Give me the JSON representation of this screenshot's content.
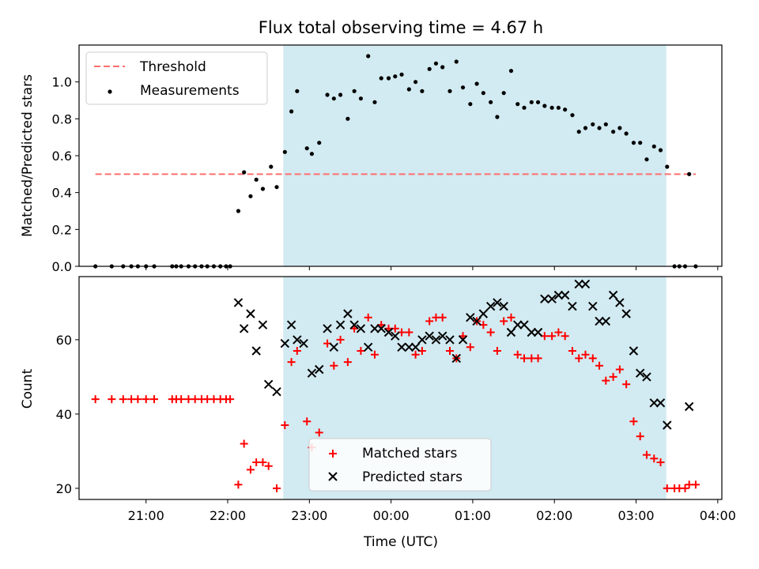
{
  "chart_data": {
    "title": "Flux total observing time = 4.67 h",
    "xlabel": "Time (UTC)",
    "x_unit": "hours (UTC, times after 24:00 are next day)",
    "x_ticks": [
      {
        "v": 21,
        "label": "21:00"
      },
      {
        "v": 22,
        "label": "22:00"
      },
      {
        "v": 23,
        "label": "23:00"
      },
      {
        "v": 24,
        "label": "00:00"
      },
      {
        "v": 25,
        "label": "01:00"
      },
      {
        "v": 26,
        "label": "02:00"
      },
      {
        "v": 27,
        "label": "03:00"
      },
      {
        "v": 28,
        "label": "04:00"
      }
    ],
    "xlim": [
      20.18,
      28.05
    ],
    "observing_window": {
      "start": 22.68,
      "end": 27.37,
      "color": "#add8e6"
    },
    "top": {
      "type": "scatter",
      "ylabel": "Matched/Predicted stars",
      "ylim": [
        0,
        1.2
      ],
      "y_ticks": [
        "0.0",
        "0.2",
        "0.4",
        "0.6",
        "0.8",
        "1.0"
      ],
      "threshold": {
        "name": "Threshold",
        "value": 0.5,
        "x_range": [
          20.38,
          28.05
        ],
        "color": "#ff6f6f"
      },
      "measurements": {
        "name": "Measurements",
        "color": "#000000",
        "points": [
          [
            20.38,
            0
          ],
          [
            20.58,
            0
          ],
          [
            20.72,
            0
          ],
          [
            20.82,
            0
          ],
          [
            20.9,
            0
          ],
          [
            21.0,
            0
          ],
          [
            21.1,
            0
          ],
          [
            21.32,
            0
          ],
          [
            21.37,
            0
          ],
          [
            21.43,
            0
          ],
          [
            21.52,
            0
          ],
          [
            21.6,
            0
          ],
          [
            21.68,
            0
          ],
          [
            21.75,
            0
          ],
          [
            21.83,
            0
          ],
          [
            21.91,
            0
          ],
          [
            21.98,
            0
          ],
          [
            22.03,
            0
          ],
          [
            22.13,
            0.3
          ],
          [
            22.2,
            0.51
          ],
          [
            22.28,
            0.38
          ],
          [
            22.35,
            0.47
          ],
          [
            22.43,
            0.42
          ],
          [
            22.53,
            0.54
          ],
          [
            22.6,
            0.43
          ],
          [
            22.7,
            0.62
          ],
          [
            22.78,
            0.84
          ],
          [
            22.85,
            0.95
          ],
          [
            22.97,
            0.64
          ],
          [
            23.03,
            0.61
          ],
          [
            23.12,
            0.67
          ],
          [
            23.22,
            0.93
          ],
          [
            23.3,
            0.91
          ],
          [
            23.38,
            0.93
          ],
          [
            23.47,
            0.8
          ],
          [
            23.55,
            0.95
          ],
          [
            23.63,
            0.91
          ],
          [
            23.72,
            1.14
          ],
          [
            23.8,
            0.89
          ],
          [
            23.88,
            1.02
          ],
          [
            23.97,
            1.02
          ],
          [
            24.05,
            1.03
          ],
          [
            24.13,
            1.04
          ],
          [
            24.22,
            0.96
          ],
          [
            24.3,
            1.0
          ],
          [
            24.38,
            0.95
          ],
          [
            24.47,
            1.07
          ],
          [
            24.55,
            1.1
          ],
          [
            24.63,
            1.08
          ],
          [
            24.72,
            0.95
          ],
          [
            24.8,
            1.11
          ],
          [
            24.88,
            0.97
          ],
          [
            24.97,
            0.88
          ],
          [
            25.05,
            0.99
          ],
          [
            25.13,
            0.94
          ],
          [
            25.22,
            0.89
          ],
          [
            25.3,
            0.81
          ],
          [
            25.38,
            0.94
          ],
          [
            25.47,
            1.06
          ],
          [
            25.55,
            0.88
          ],
          [
            25.63,
            0.86
          ],
          [
            25.72,
            0.89
          ],
          [
            25.8,
            0.89
          ],
          [
            25.88,
            0.87
          ],
          [
            25.97,
            0.86
          ],
          [
            26.05,
            0.86
          ],
          [
            26.13,
            0.85
          ],
          [
            26.22,
            0.82
          ],
          [
            26.3,
            0.73
          ],
          [
            26.38,
            0.75
          ],
          [
            26.47,
            0.77
          ],
          [
            26.55,
            0.75
          ],
          [
            26.63,
            0.77
          ],
          [
            26.72,
            0.73
          ],
          [
            26.8,
            0.75
          ],
          [
            26.88,
            0.72
          ],
          [
            26.97,
            0.67
          ],
          [
            27.05,
            0.67
          ],
          [
            27.13,
            0.58
          ],
          [
            27.22,
            0.65
          ],
          [
            27.3,
            0.63
          ],
          [
            27.38,
            0.54
          ],
          [
            27.47,
            0
          ],
          [
            27.53,
            0
          ],
          [
            27.6,
            0
          ],
          [
            27.65,
            0.5
          ],
          [
            27.73,
            0
          ]
        ]
      },
      "legend": {
        "position": "top-left"
      }
    },
    "bottom": {
      "type": "scatter",
      "ylabel": "Count",
      "ylim": [
        17,
        77
      ],
      "y_ticks": [
        "20",
        "40",
        "60"
      ],
      "matched": {
        "name": "Matched stars",
        "color": "#ff0000",
        "points": [
          [
            20.38,
            44
          ],
          [
            20.58,
            44
          ],
          [
            20.72,
            44
          ],
          [
            20.82,
            44
          ],
          [
            20.9,
            44
          ],
          [
            21.0,
            44
          ],
          [
            21.1,
            44
          ],
          [
            21.32,
            44
          ],
          [
            21.37,
            44
          ],
          [
            21.43,
            44
          ],
          [
            21.52,
            44
          ],
          [
            21.6,
            44
          ],
          [
            21.68,
            44
          ],
          [
            21.75,
            44
          ],
          [
            21.83,
            44
          ],
          [
            21.91,
            44
          ],
          [
            21.98,
            44
          ],
          [
            22.03,
            44
          ],
          [
            22.13,
            21
          ],
          [
            22.2,
            32
          ],
          [
            22.28,
            25
          ],
          [
            22.35,
            27
          ],
          [
            22.43,
            27
          ],
          [
            22.5,
            26
          ],
          [
            22.6,
            20
          ],
          [
            22.7,
            37
          ],
          [
            22.78,
            54
          ],
          [
            22.85,
            57
          ],
          [
            22.97,
            38
          ],
          [
            23.03,
            31
          ],
          [
            23.12,
            35
          ],
          [
            23.22,
            59
          ],
          [
            23.3,
            53
          ],
          [
            23.38,
            60
          ],
          [
            23.47,
            54
          ],
          [
            23.55,
            63
          ],
          [
            23.63,
            57
          ],
          [
            23.72,
            66
          ],
          [
            23.8,
            56
          ],
          [
            23.88,
            64
          ],
          [
            23.97,
            63
          ],
          [
            24.05,
            63
          ],
          [
            24.13,
            62
          ],
          [
            24.22,
            62
          ],
          [
            24.3,
            56
          ],
          [
            24.38,
            57
          ],
          [
            24.47,
            65
          ],
          [
            24.55,
            66
          ],
          [
            24.63,
            66
          ],
          [
            24.72,
            57
          ],
          [
            24.8,
            55
          ],
          [
            24.88,
            61
          ],
          [
            24.97,
            58
          ],
          [
            25.05,
            65
          ],
          [
            25.13,
            64
          ],
          [
            25.22,
            62
          ],
          [
            25.3,
            57
          ],
          [
            25.38,
            65
          ],
          [
            25.47,
            66
          ],
          [
            25.55,
            56
          ],
          [
            25.63,
            55
          ],
          [
            25.72,
            55
          ],
          [
            25.8,
            55
          ],
          [
            25.88,
            61
          ],
          [
            25.97,
            61
          ],
          [
            26.05,
            62
          ],
          [
            26.13,
            61
          ],
          [
            26.22,
            57
          ],
          [
            26.3,
            55
          ],
          [
            26.38,
            56
          ],
          [
            26.47,
            55
          ],
          [
            26.55,
            53
          ],
          [
            26.63,
            49
          ],
          [
            26.72,
            50
          ],
          [
            26.8,
            52
          ],
          [
            26.88,
            48
          ],
          [
            26.97,
            38
          ],
          [
            27.05,
            34
          ],
          [
            27.13,
            29
          ],
          [
            27.22,
            28
          ],
          [
            27.3,
            27
          ],
          [
            27.38,
            20
          ],
          [
            27.47,
            20
          ],
          [
            27.53,
            20
          ],
          [
            27.6,
            20
          ],
          [
            27.65,
            21
          ],
          [
            27.73,
            21
          ]
        ]
      },
      "predicted": {
        "name": "Predicted stars",
        "color": "#000000",
        "points": [
          [
            22.13,
            70
          ],
          [
            22.2,
            63
          ],
          [
            22.28,
            67
          ],
          [
            22.35,
            57
          ],
          [
            22.43,
            64
          ],
          [
            22.5,
            48
          ],
          [
            22.6,
            46
          ],
          [
            22.7,
            59
          ],
          [
            22.78,
            64
          ],
          [
            22.85,
            60
          ],
          [
            22.93,
            59
          ],
          [
            23.03,
            51
          ],
          [
            23.12,
            52
          ],
          [
            23.22,
            63
          ],
          [
            23.3,
            58
          ],
          [
            23.38,
            64
          ],
          [
            23.47,
            67
          ],
          [
            23.55,
            64
          ],
          [
            23.63,
            63
          ],
          [
            23.72,
            58
          ],
          [
            23.8,
            63
          ],
          [
            23.88,
            63
          ],
          [
            23.97,
            62
          ],
          [
            24.05,
            61
          ],
          [
            24.13,
            58
          ],
          [
            24.22,
            58
          ],
          [
            24.3,
            58
          ],
          [
            24.38,
            60
          ],
          [
            24.47,
            61
          ],
          [
            24.55,
            60
          ],
          [
            24.63,
            61
          ],
          [
            24.72,
            60
          ],
          [
            24.8,
            55
          ],
          [
            24.88,
            60
          ],
          [
            24.97,
            66
          ],
          [
            25.05,
            65
          ],
          [
            25.13,
            67
          ],
          [
            25.22,
            69
          ],
          [
            25.3,
            70
          ],
          [
            25.38,
            69
          ],
          [
            25.47,
            62
          ],
          [
            25.55,
            64
          ],
          [
            25.63,
            64
          ],
          [
            25.72,
            62
          ],
          [
            25.8,
            62
          ],
          [
            25.88,
            71
          ],
          [
            25.97,
            71
          ],
          [
            26.05,
            72
          ],
          [
            26.13,
            72
          ],
          [
            26.22,
            69
          ],
          [
            26.3,
            75
          ],
          [
            26.38,
            75
          ],
          [
            26.47,
            69
          ],
          [
            26.55,
            65
          ],
          [
            26.63,
            65
          ],
          [
            26.72,
            72
          ],
          [
            26.8,
            70
          ],
          [
            26.88,
            67
          ],
          [
            26.97,
            57
          ],
          [
            27.05,
            51
          ],
          [
            27.13,
            50
          ],
          [
            27.22,
            43
          ],
          [
            27.3,
            43
          ],
          [
            27.38,
            37
          ],
          [
            27.65,
            42
          ]
        ]
      },
      "legend": {
        "position": "bottom-center"
      }
    }
  }
}
